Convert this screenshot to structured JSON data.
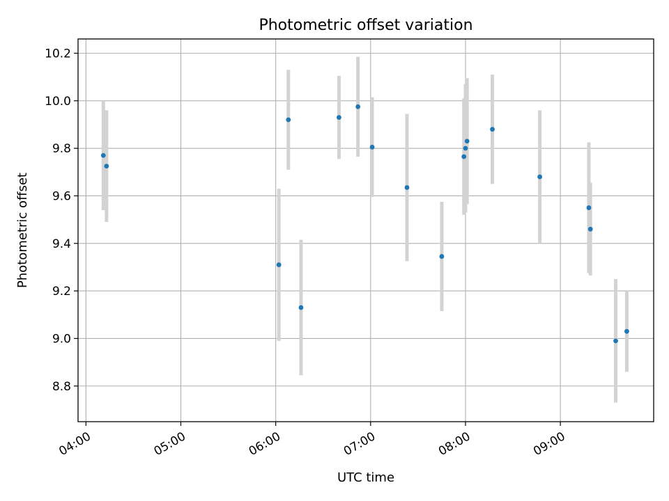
{
  "chart_data": {
    "type": "scatter",
    "title": "Photometric offset variation",
    "xlabel": "UTC time",
    "ylabel": "Photometric offset",
    "x_ticks": [
      "04:00",
      "05:00",
      "06:00",
      "07:00",
      "08:00",
      "09:00"
    ],
    "y_ticks": [
      "8.8",
      "9.0",
      "9.2",
      "9.4",
      "9.6",
      "9.8",
      "10.0",
      "10.2"
    ],
    "xlim": [
      "03:55",
      "09:59"
    ],
    "ylim": [
      8.65,
      10.26
    ],
    "grid": true,
    "marker_color": "#1f77b4",
    "errorbar_color": "#d3d3d3",
    "points": [
      {
        "x": "04:11",
        "y": 9.77,
        "yerr": 0.23
      },
      {
        "x": "04:13",
        "y": 9.725,
        "yerr": 0.235
      },
      {
        "x": "06:02",
        "y": 9.31,
        "yerr": 0.32
      },
      {
        "x": "06:08",
        "y": 9.92,
        "yerr": 0.21
      },
      {
        "x": "06:16",
        "y": 9.13,
        "yerr": 0.285
      },
      {
        "x": "06:40",
        "y": 9.93,
        "yerr": 0.175
      },
      {
        "x": "06:52",
        "y": 9.975,
        "yerr": 0.21
      },
      {
        "x": "07:01",
        "y": 9.805,
        "yerr": 0.21
      },
      {
        "x": "07:23",
        "y": 9.635,
        "yerr": 0.31
      },
      {
        "x": "07:45",
        "y": 9.345,
        "yerr": 0.23
      },
      {
        "x": "07:59",
        "y": 9.765,
        "yerr": 0.245
      },
      {
        "x": "08:00",
        "y": 9.8,
        "yerr": 0.27
      },
      {
        "x": "08:01",
        "y": 9.83,
        "yerr": 0.265
      },
      {
        "x": "08:17",
        "y": 9.88,
        "yerr": 0.23
      },
      {
        "x": "08:47",
        "y": 9.68,
        "yerr": 0.28
      },
      {
        "x": "09:18",
        "y": 9.55,
        "yerr": 0.275
      },
      {
        "x": "09:19",
        "y": 9.46,
        "yerr": 0.195
      },
      {
        "x": "09:35",
        "y": 8.99,
        "yerr": 0.26
      },
      {
        "x": "09:42",
        "y": 9.03,
        "yerr": 0.17
      }
    ]
  }
}
